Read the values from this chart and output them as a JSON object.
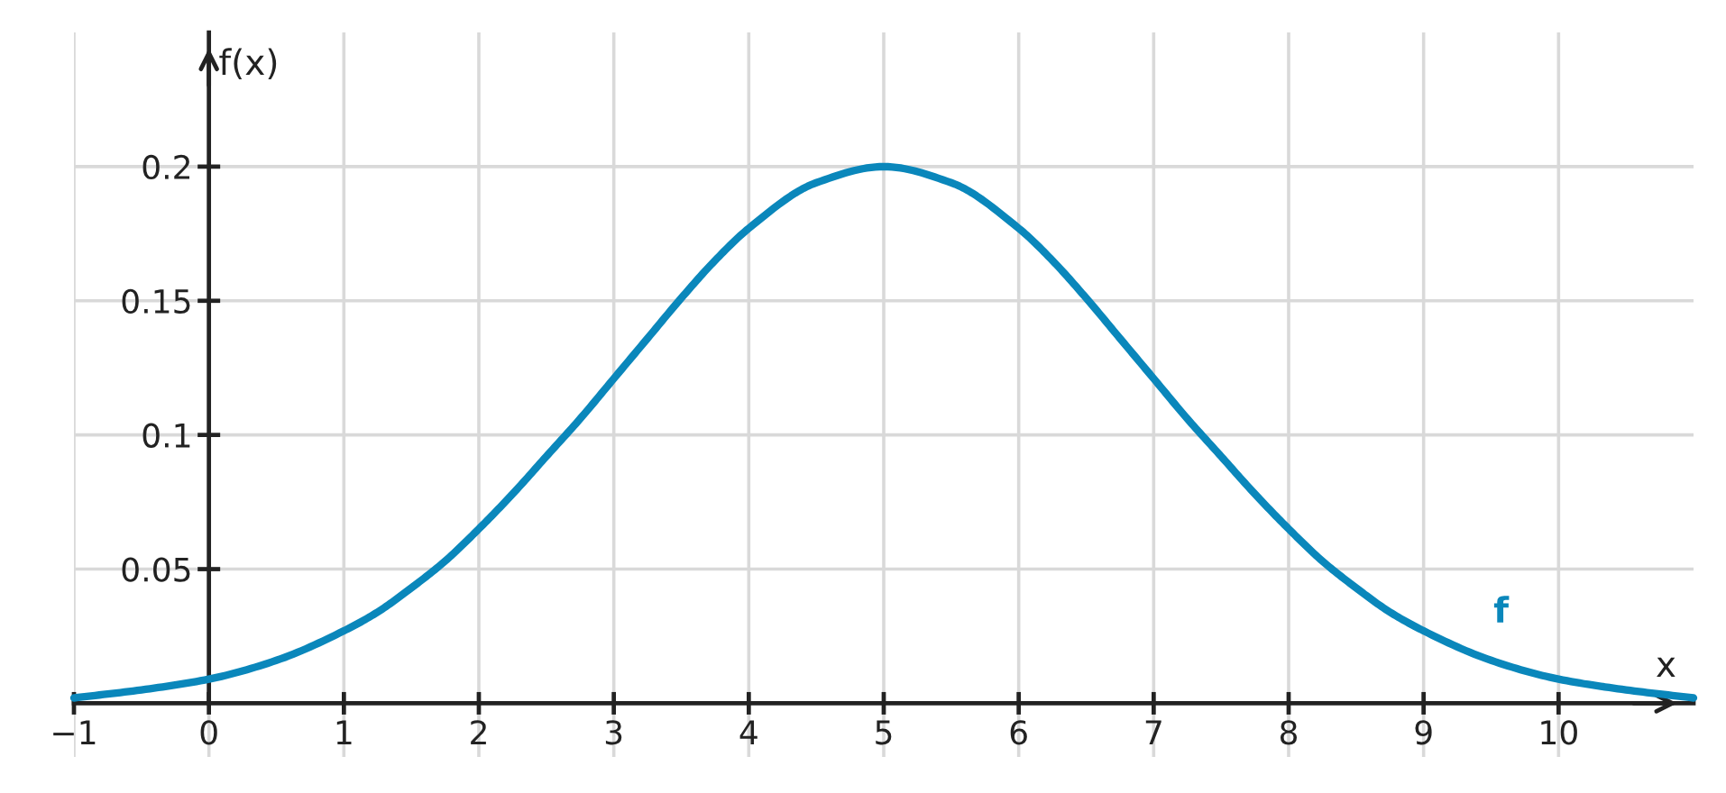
{
  "chart_data": {
    "type": "line",
    "xlabel": "x",
    "ylabel": "f(x)",
    "x": [
      -1,
      -0.5,
      0,
      0.5,
      1,
      1.25,
      1.5,
      1.75,
      2,
      2.25,
      2.5,
      2.75,
      3,
      3.25,
      3.5,
      3.75,
      4,
      4.5,
      5,
      5.5,
      6,
      6.25,
      6.5,
      6.75,
      7,
      7.25,
      7.5,
      7.75,
      8,
      8.25,
      8.5,
      8.75,
      9,
      9.5,
      10,
      10.5,
      11
    ],
    "series": [
      {
        "name": "f",
        "color": "#0a87bb",
        "values": [
          0.002,
          0.005,
          0.009,
          0.016,
          0.027,
          0.034,
          0.043,
          0.053,
          0.065,
          0.078,
          0.092,
          0.106,
          0.121,
          0.136,
          0.151,
          0.165,
          0.177,
          0.194,
          0.2,
          0.194,
          0.177,
          0.165,
          0.151,
          0.136,
          0.121,
          0.106,
          0.092,
          0.078,
          0.065,
          0.053,
          0.043,
          0.034,
          0.027,
          0.016,
          0.009,
          0.005,
          0.002
        ]
      }
    ],
    "xlim": [
      -1,
      11
    ],
    "ylim": [
      -0.02,
      0.25
    ],
    "xticks": [
      {
        "value": -1,
        "label": "−1"
      },
      0,
      1,
      2,
      3,
      4,
      5,
      6,
      7,
      8,
      9,
      10
    ],
    "yticks": [
      0.05,
      0.1,
      0.15,
      0.2
    ],
    "grid": true,
    "line_style": "solid"
  }
}
